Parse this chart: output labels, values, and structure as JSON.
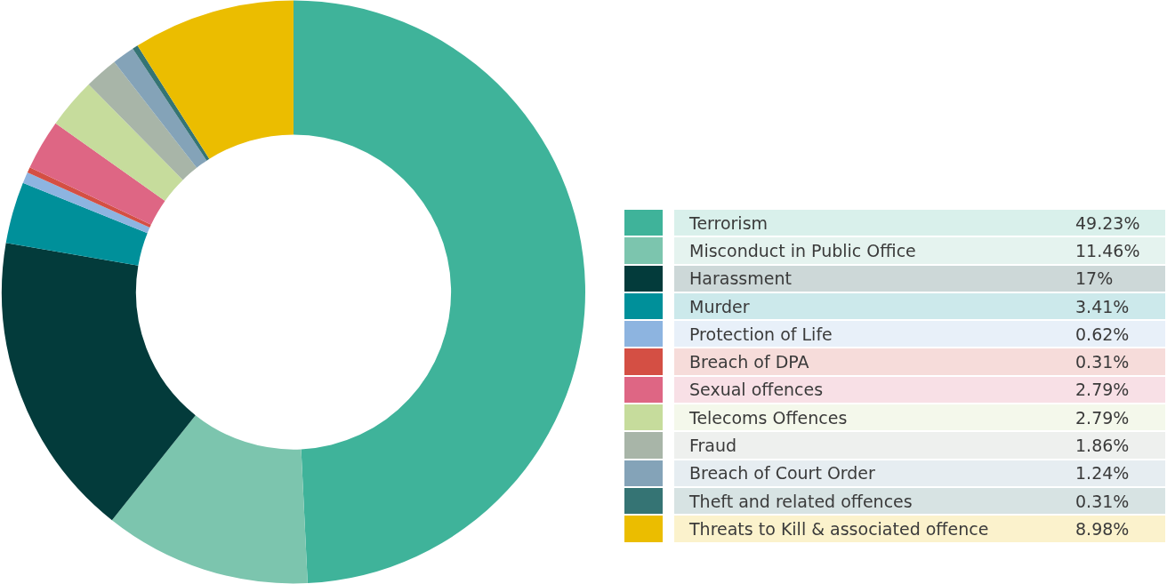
{
  "chart_data": {
    "type": "donut",
    "categories": [
      "Terrorism",
      "Misconduct in Public Office",
      "Harassment",
      "Murder",
      "Protection of Life",
      "Breach of DPA",
      "Sexual offences",
      "Telecoms Offences",
      "Fraud",
      "Breach of Court Order",
      "Theft and related offences",
      "Threats to Kill & associated offence"
    ],
    "values": [
      49.23,
      11.46,
      17,
      3.41,
      0.62,
      0.31,
      2.79,
      2.79,
      1.86,
      1.24,
      0.31,
      8.98
    ],
    "value_labels": [
      "49.23%",
      "11.46%",
      "17%",
      "3.41%",
      "0.62%",
      "0.31%",
      "2.79%",
      "2.79%",
      "1.86%",
      "1.24%",
      "0.31%",
      "8.98%"
    ],
    "colors": [
      "#3fb39a",
      "#7cc5ae",
      "#033b3b",
      "#00909a",
      "#8db4e0",
      "#d44f44",
      "#de6684",
      "#c6dc9c",
      "#a8b5a8",
      "#84a3b8",
      "#357474",
      "#ebbd00"
    ],
    "legend": "right"
  }
}
